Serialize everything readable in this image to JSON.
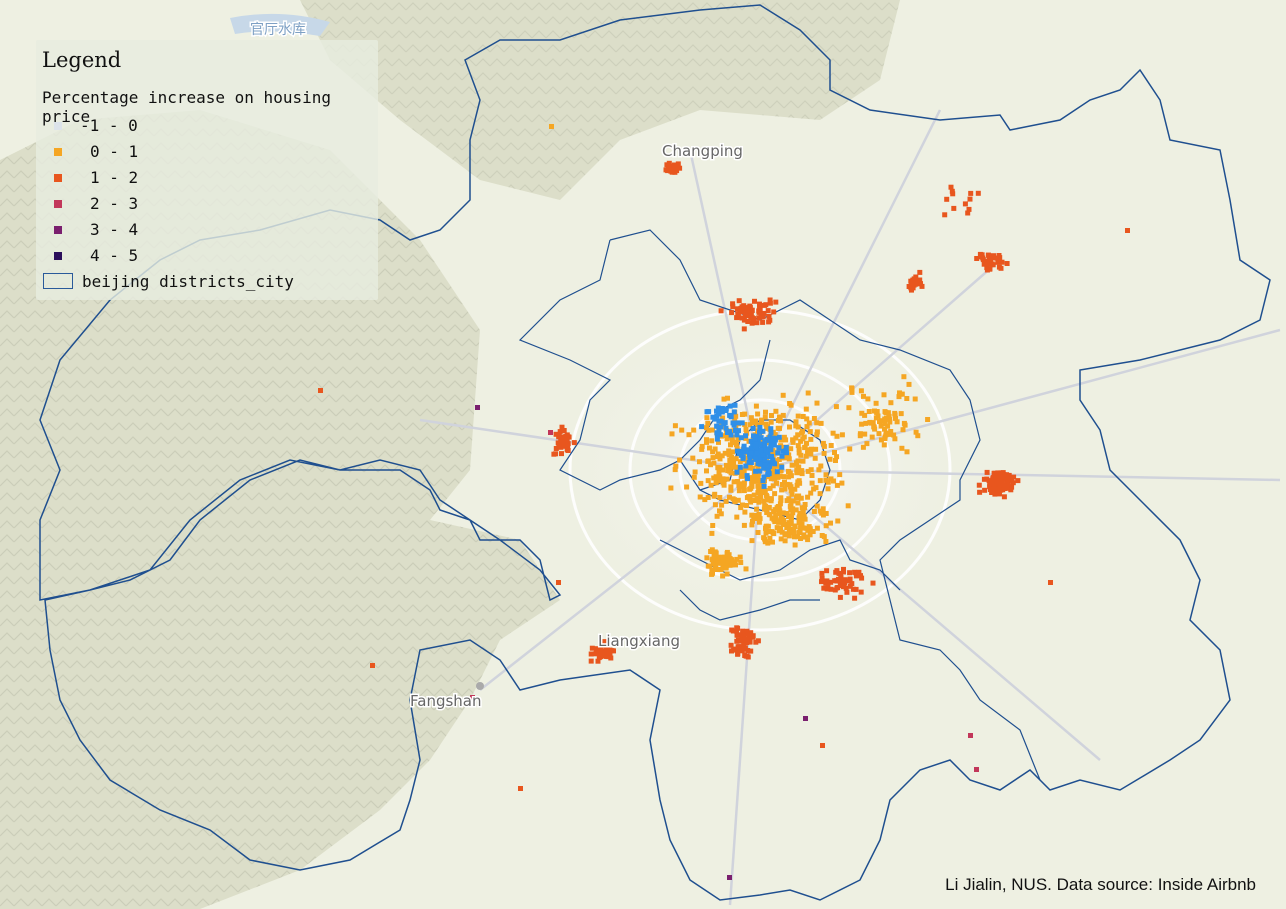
{
  "legend": {
    "title": "Legend",
    "subtitle": "Percentage increase on housing price",
    "classes": [
      {
        "label": "-1 - 0",
        "color": "#dce3ea"
      },
      {
        "label": "0 - 1",
        "color": "#f5a623"
      },
      {
        "label": "1 - 2",
        "color": "#e8561e"
      },
      {
        "label": "2 - 3",
        "color": "#c2375a"
      },
      {
        "label": "3 - 4",
        "color": "#7a1f6e"
      },
      {
        "label": "4 - 5",
        "color": "#2a0e5a"
      }
    ],
    "boundary_label": "beijing districts_city"
  },
  "places": {
    "changping": "Changping",
    "liangxiang": "Liangxiang",
    "fangshan": "Fangshan",
    "reservoir": "官厅水库"
  },
  "credit": "Li Jialin, NUS. Data source: Inside Airbnb",
  "colors": {
    "blue_points": "#2f8fe8",
    "boundary": "#1f4f8f",
    "terrain": "#d9dbc8",
    "base": "#eef0e2",
    "urban": "#f2f2f0"
  }
}
